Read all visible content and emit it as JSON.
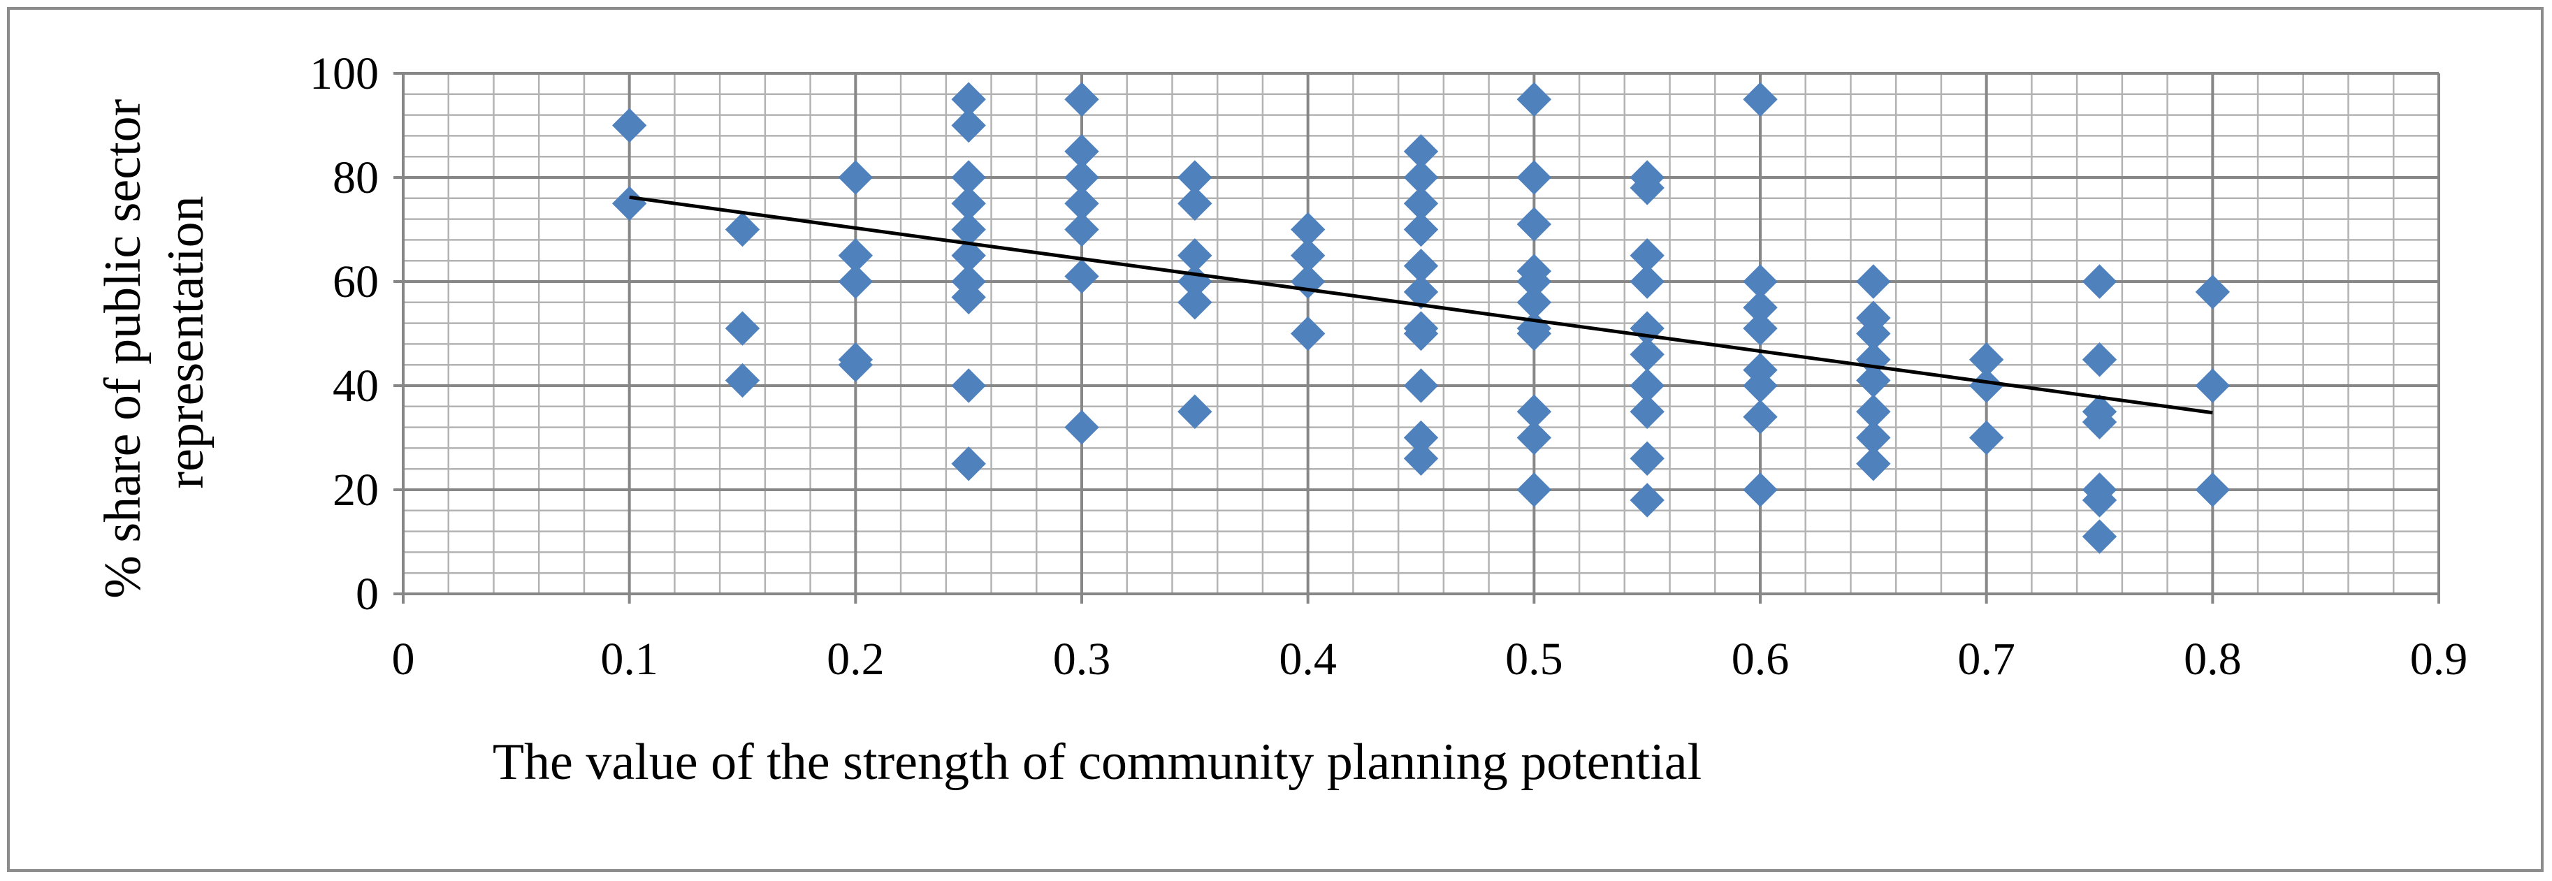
{
  "chart_data": {
    "type": "scatter",
    "xlabel": "The value of the strength of community planning potential",
    "ylabel_lines": [
      "% share of public sector",
      "representation"
    ],
    "xlim": [
      0,
      0.9
    ],
    "ylim": [
      0,
      100
    ],
    "x_ticks": [
      "0",
      "0.1",
      "0.2",
      "0.3",
      "0.4",
      "0.5",
      "0.6",
      "0.7",
      "0.8",
      "0.9"
    ],
    "y_ticks": [
      "0",
      "20",
      "40",
      "60",
      "80",
      "100"
    ],
    "grid": true,
    "legend": "none",
    "marker_color": "#4F81BD",
    "trendline_color": "#000000",
    "trendline": {
      "x": [
        0.1,
        0.8
      ],
      "y": [
        76.2,
        34.8
      ]
    },
    "points": [
      [
        0.1,
        90
      ],
      [
        0.1,
        75
      ],
      [
        0.15,
        70
      ],
      [
        0.15,
        51
      ],
      [
        0.15,
        41
      ],
      [
        0.2,
        80
      ],
      [
        0.2,
        65
      ],
      [
        0.2,
        60
      ],
      [
        0.2,
        45
      ],
      [
        0.2,
        44
      ],
      [
        0.25,
        95
      ],
      [
        0.25,
        90
      ],
      [
        0.25,
        80
      ],
      [
        0.25,
        75
      ],
      [
        0.25,
        70
      ],
      [
        0.25,
        65
      ],
      [
        0.25,
        60
      ],
      [
        0.25,
        57
      ],
      [
        0.25,
        40
      ],
      [
        0.25,
        25
      ],
      [
        0.3,
        95
      ],
      [
        0.3,
        85
      ],
      [
        0.3,
        80
      ],
      [
        0.3,
        75
      ],
      [
        0.3,
        70
      ],
      [
        0.3,
        61
      ],
      [
        0.3,
        32
      ],
      [
        0.35,
        80
      ],
      [
        0.35,
        75
      ],
      [
        0.35,
        65
      ],
      [
        0.35,
        60
      ],
      [
        0.35,
        56
      ],
      [
        0.35,
        35
      ],
      [
        0.4,
        70
      ],
      [
        0.4,
        65
      ],
      [
        0.4,
        60
      ],
      [
        0.4,
        50
      ],
      [
        0.45,
        85
      ],
      [
        0.45,
        80
      ],
      [
        0.45,
        75
      ],
      [
        0.45,
        70
      ],
      [
        0.45,
        63
      ],
      [
        0.45,
        58
      ],
      [
        0.45,
        51
      ],
      [
        0.45,
        50
      ],
      [
        0.45,
        40
      ],
      [
        0.45,
        30
      ],
      [
        0.45,
        26
      ],
      [
        0.5,
        95
      ],
      [
        0.5,
        80
      ],
      [
        0.5,
        71
      ],
      [
        0.5,
        62
      ],
      [
        0.5,
        60
      ],
      [
        0.5,
        56
      ],
      [
        0.5,
        51
      ],
      [
        0.5,
        50
      ],
      [
        0.5,
        35
      ],
      [
        0.5,
        30
      ],
      [
        0.5,
        20
      ],
      [
        0.55,
        80
      ],
      [
        0.55,
        78
      ],
      [
        0.55,
        65
      ],
      [
        0.55,
        60
      ],
      [
        0.55,
        51
      ],
      [
        0.55,
        46
      ],
      [
        0.55,
        40
      ],
      [
        0.55,
        35
      ],
      [
        0.55,
        26
      ],
      [
        0.55,
        18
      ],
      [
        0.6,
        95
      ],
      [
        0.6,
        60
      ],
      [
        0.6,
        55
      ],
      [
        0.6,
        51
      ],
      [
        0.6,
        43
      ],
      [
        0.6,
        40
      ],
      [
        0.6,
        34
      ],
      [
        0.6,
        20
      ],
      [
        0.65,
        60
      ],
      [
        0.65,
        53
      ],
      [
        0.65,
        50
      ],
      [
        0.65,
        45
      ],
      [
        0.65,
        41
      ],
      [
        0.65,
        35
      ],
      [
        0.65,
        30
      ],
      [
        0.65,
        25
      ],
      [
        0.7,
        45
      ],
      [
        0.7,
        40
      ],
      [
        0.7,
        30
      ],
      [
        0.75,
        60
      ],
      [
        0.75,
        45
      ],
      [
        0.75,
        35
      ],
      [
        0.75,
        33
      ],
      [
        0.75,
        20
      ],
      [
        0.75,
        18
      ],
      [
        0.75,
        11
      ],
      [
        0.8,
        58
      ],
      [
        0.8,
        40
      ],
      [
        0.8,
        20
      ]
    ]
  }
}
